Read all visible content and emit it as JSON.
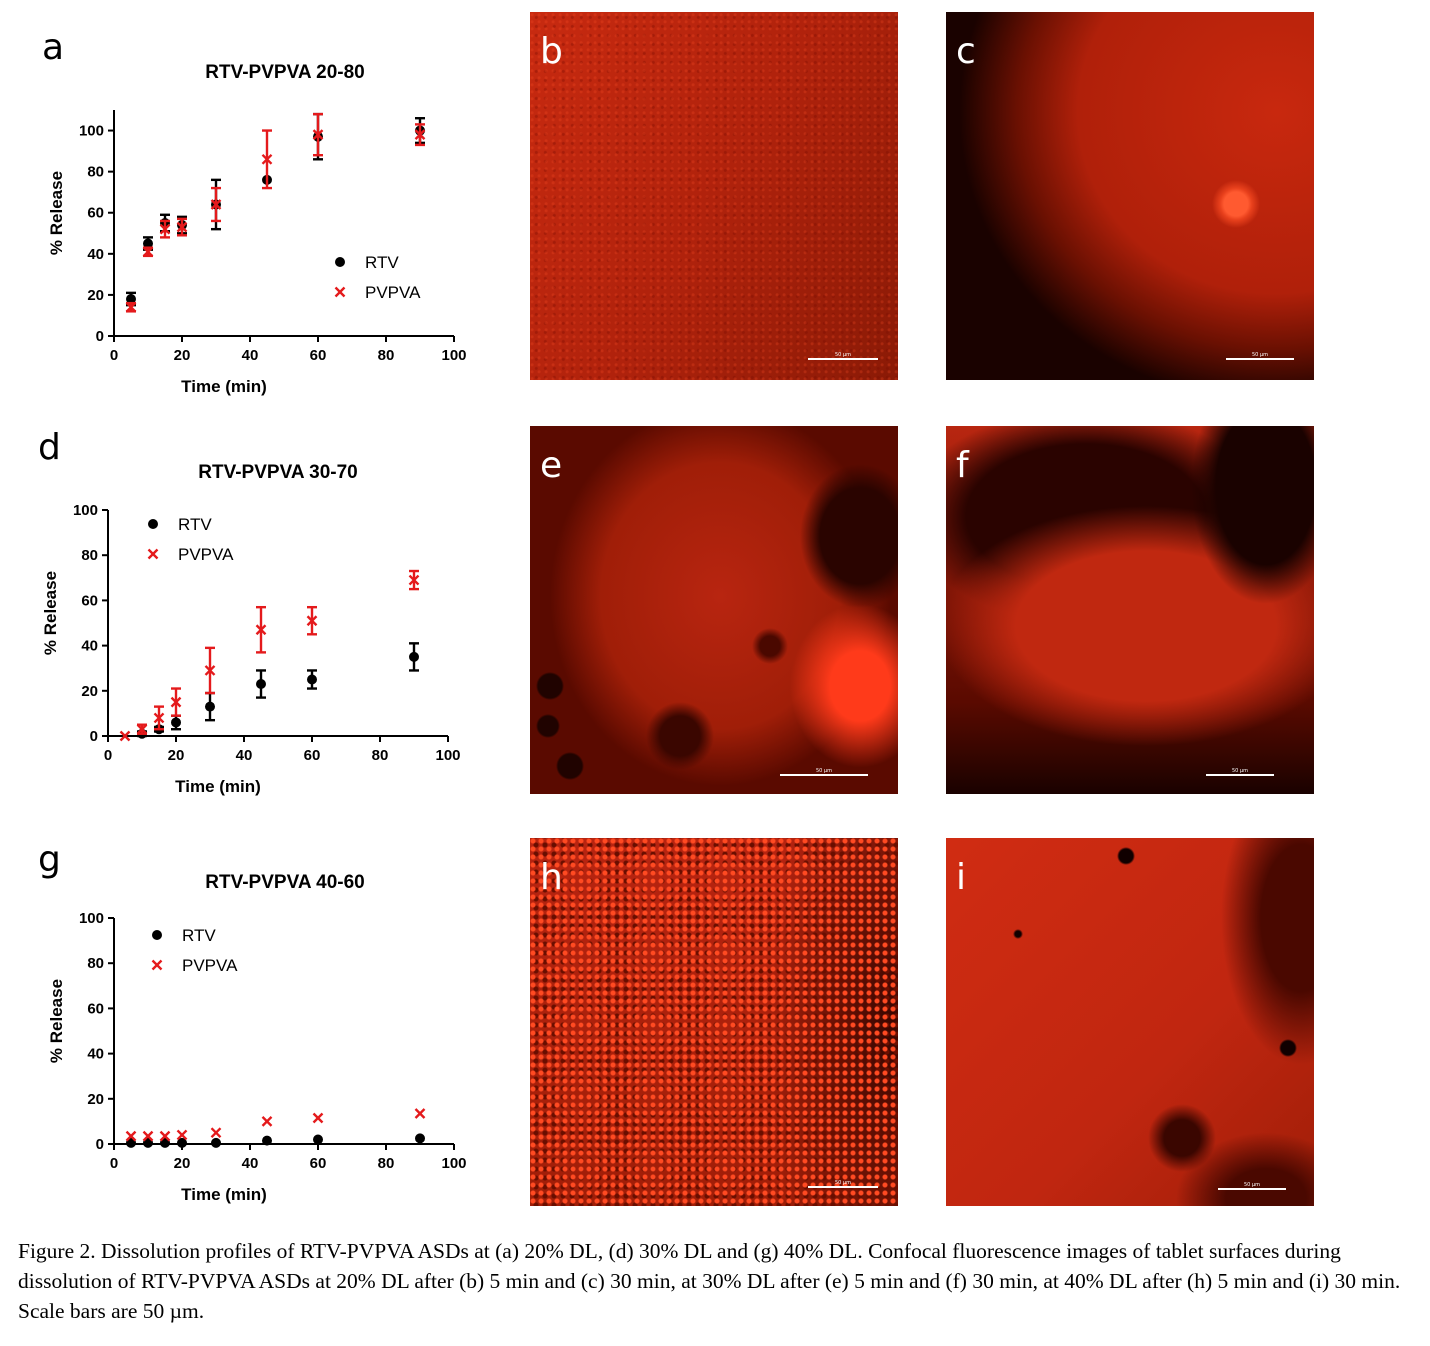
{
  "figure": {
    "caption": "Figure 2. Dissolution profiles of RTV-PVPVA ASDs at (a) 20% DL, (d) 30% DL and (g) 40% DL. Confocal fluorescence images of tablet surfaces during dissolution of RTV-PVPVA ASDs at 20% DL after (b) 5 min and (c) 30 min, at 30% DL after (e) 5 min and (f) 30 min, at 40% DL after (h) 5 min and (i) 30 min. Scale bars are 50 µm.",
    "colors": {
      "rtv": "#000000",
      "pvpva": "#e41a1c",
      "micro_dark": "#1a0200",
      "micro_red": "#d42a10"
    }
  },
  "panels": {
    "a": "a",
    "b": "b",
    "c": "c",
    "d": "d",
    "e": "e",
    "f": "f",
    "g": "g",
    "h": "h",
    "i": "i"
  },
  "micrographs": [
    {
      "id": "b",
      "scale_label": "50 µm",
      "description_icon": "confocal-image"
    },
    {
      "id": "c",
      "scale_label": "50 µm",
      "description_icon": "confocal-image"
    },
    {
      "id": "e",
      "scale_label": "50 µm",
      "description_icon": "confocal-image"
    },
    {
      "id": "f",
      "scale_label": "50 µm",
      "description_icon": "confocal-image"
    },
    {
      "id": "h",
      "scale_label": "50 µm",
      "description_icon": "confocal-image"
    },
    {
      "id": "i",
      "scale_label": "50 µm",
      "description_icon": "confocal-image"
    }
  ],
  "chart_data": [
    {
      "type": "scatter",
      "panel": "a",
      "title": "RTV-PVPVA 20-80",
      "xlabel": "Time (min)",
      "ylabel": "% Release",
      "xlim": [
        0,
        100
      ],
      "ylim": [
        0,
        110
      ],
      "xticks": [
        0,
        20,
        40,
        60,
        80,
        100
      ],
      "yticks": [
        0,
        20,
        40,
        60,
        80,
        100
      ],
      "legend_position": "center-right",
      "series": [
        {
          "name": "RTV",
          "marker": "circle",
          "x": [
            5,
            10,
            15,
            20,
            30,
            45,
            60,
            90
          ],
          "y": [
            18,
            45,
            55,
            54,
            64,
            76,
            97,
            100
          ],
          "err": [
            3,
            3,
            4,
            4,
            12,
            0,
            11,
            6
          ]
        },
        {
          "name": "PVPVA",
          "marker": "x",
          "x": [
            5,
            10,
            15,
            20,
            30,
            45,
            60,
            90
          ],
          "y": [
            14,
            41,
            52,
            53,
            64,
            86,
            98,
            98
          ],
          "err": [
            2,
            2,
            4,
            4,
            8,
            14,
            10,
            5
          ]
        }
      ]
    },
    {
      "type": "scatter",
      "panel": "d",
      "title": "RTV-PVPVA 30-70",
      "xlabel": "Time (min)",
      "ylabel": "% Release",
      "xlim": [
        0,
        100
      ],
      "ylim": [
        0,
        100
      ],
      "xticks": [
        0,
        20,
        40,
        60,
        80,
        100
      ],
      "yticks": [
        0,
        20,
        40,
        60,
        80,
        100
      ],
      "legend_position": "top-left",
      "series": [
        {
          "name": "RTV",
          "marker": "circle",
          "x": [
            10,
            15,
            20,
            30,
            45,
            60,
            90
          ],
          "y": [
            1,
            3,
            6,
            13,
            23,
            25,
            35
          ],
          "err": [
            1,
            1,
            3,
            6,
            6,
            4,
            6
          ]
        },
        {
          "name": "PVPVA",
          "marker": "x",
          "x": [
            5,
            10,
            15,
            20,
            30,
            45,
            60,
            90
          ],
          "y": [
            0,
            3,
            8,
            15,
            29,
            47,
            51,
            69
          ],
          "err": [
            0,
            2,
            5,
            6,
            10,
            10,
            6,
            4
          ]
        }
      ]
    },
    {
      "type": "scatter",
      "panel": "g",
      "title": "RTV-PVPVA 40-60",
      "xlabel": "Time (min)",
      "ylabel": "% Release",
      "xlim": [
        0,
        100
      ],
      "ylim": [
        0,
        100
      ],
      "xticks": [
        0,
        20,
        40,
        60,
        80,
        100
      ],
      "yticks": [
        0,
        20,
        40,
        60,
        80,
        100
      ],
      "legend_position": "top-left",
      "series": [
        {
          "name": "RTV",
          "marker": "circle",
          "x": [
            5,
            10,
            15,
            20,
            30,
            45,
            60,
            90
          ],
          "y": [
            0.5,
            0.5,
            0.5,
            0.5,
            0.5,
            1.5,
            2,
            2.5
          ],
          "err": [
            0,
            0,
            0,
            0,
            0,
            0,
            0,
            0
          ]
        },
        {
          "name": "PVPVA",
          "marker": "x",
          "x": [
            5,
            10,
            15,
            20,
            30,
            45,
            60,
            90
          ],
          "y": [
            3.5,
            3.5,
            3.5,
            4,
            5,
            10,
            11.5,
            13.5
          ],
          "err": [
            0,
            0,
            0,
            0,
            0,
            0,
            0,
            0
          ]
        }
      ]
    }
  ]
}
